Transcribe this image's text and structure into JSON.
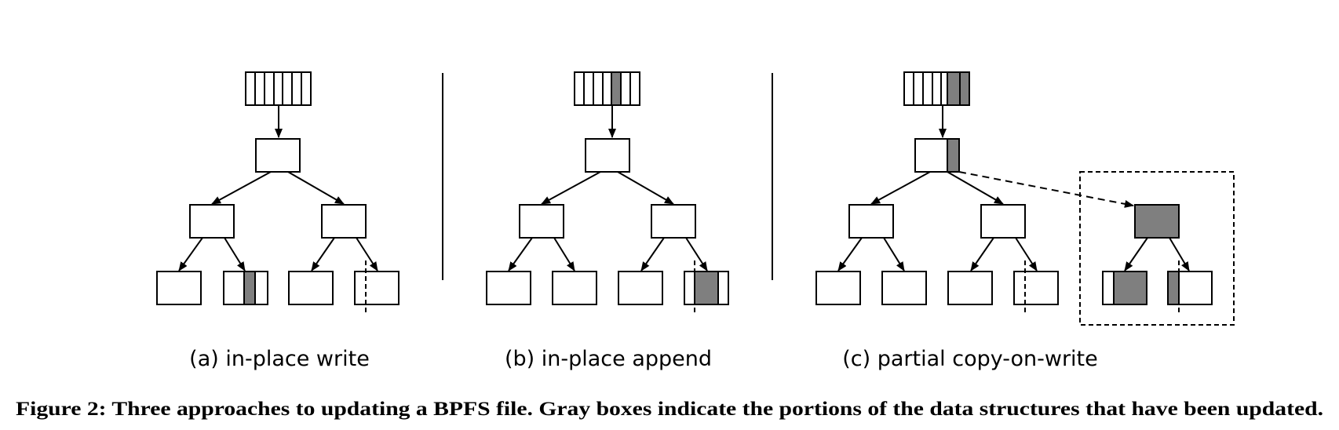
{
  "figure": {
    "subcaptions": {
      "a": "(a) in-place write",
      "b": "(b) in-place append",
      "c": "(c) partial copy-on-write"
    },
    "caption": "Figure 2: Three approaches to updating a BPFS file. Gray boxes indicate the portions of the data structures that have been updated.",
    "colors": {
      "updated": "#7f7f7f",
      "line": "#000000",
      "background": "#ffffff"
    }
  }
}
